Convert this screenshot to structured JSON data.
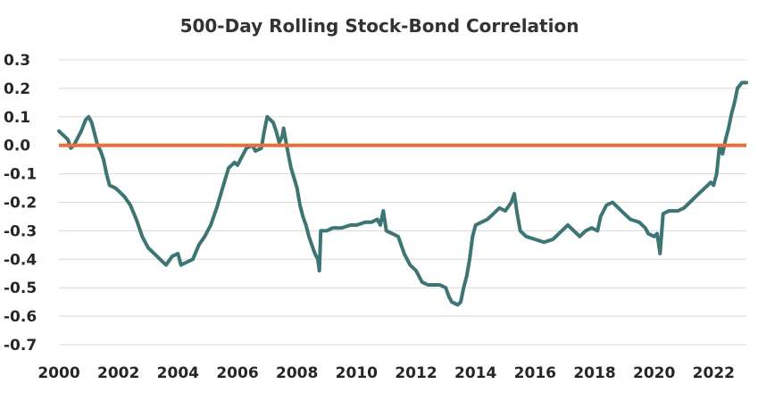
{
  "chart_data": {
    "type": "line",
    "title": "500-Day Rolling Stock-Bond Correlation",
    "xlabel": "",
    "ylabel": "",
    "xlim": [
      2000,
      2023.1
    ],
    "ylim": [
      -0.7,
      0.3
    ],
    "x_ticks": [
      "2000",
      "2002",
      "2004",
      "2006",
      "2008",
      "2010",
      "2012",
      "2014",
      "2016",
      "2018",
      "2020",
      "2022"
    ],
    "y_ticks": [
      "0.3",
      "0.2",
      "0.1",
      "0.0",
      "-0.1",
      "-0.2",
      "-0.3",
      "-0.4",
      "-0.5",
      "-0.6",
      "-0.7"
    ],
    "grid": true,
    "reference_line": {
      "y": 0.0,
      "color": "#E8703A"
    },
    "colors": {
      "series": "#3D7474",
      "reference": "#E8703A",
      "grid": "#d9d9d9"
    },
    "series": [
      {
        "points": [
          [
            2000.0,
            0.05
          ],
          [
            2000.1,
            0.04
          ],
          [
            2000.2,
            0.03
          ],
          [
            2000.3,
            0.02
          ],
          [
            2000.4,
            -0.01
          ],
          [
            2000.5,
            0.0
          ],
          [
            2000.6,
            0.02
          ],
          [
            2000.75,
            0.05
          ],
          [
            2000.9,
            0.09
          ],
          [
            2001.0,
            0.1
          ],
          [
            2001.1,
            0.08
          ],
          [
            2001.2,
            0.04
          ],
          [
            2001.3,
            0.0
          ],
          [
            2001.4,
            -0.02
          ],
          [
            2001.5,
            -0.05
          ],
          [
            2001.6,
            -0.1
          ],
          [
            2001.7,
            -0.14
          ],
          [
            2001.9,
            -0.15
          ],
          [
            2002.0,
            -0.16
          ],
          [
            2002.2,
            -0.18
          ],
          [
            2002.4,
            -0.21
          ],
          [
            2002.6,
            -0.26
          ],
          [
            2002.8,
            -0.32
          ],
          [
            2003.0,
            -0.36
          ],
          [
            2003.2,
            -0.38
          ],
          [
            2003.4,
            -0.4
          ],
          [
            2003.6,
            -0.42
          ],
          [
            2003.8,
            -0.39
          ],
          [
            2004.0,
            -0.38
          ],
          [
            2004.1,
            -0.42
          ],
          [
            2004.3,
            -0.41
          ],
          [
            2004.5,
            -0.4
          ],
          [
            2004.7,
            -0.35
          ],
          [
            2004.9,
            -0.32
          ],
          [
            2005.1,
            -0.28
          ],
          [
            2005.3,
            -0.22
          ],
          [
            2005.5,
            -0.15
          ],
          [
            2005.7,
            -0.08
          ],
          [
            2005.9,
            -0.06
          ],
          [
            2006.0,
            -0.07
          ],
          [
            2006.1,
            -0.05
          ],
          [
            2006.3,
            -0.01
          ],
          [
            2006.5,
            0.0
          ],
          [
            2006.6,
            -0.02
          ],
          [
            2006.8,
            -0.01
          ],
          [
            2006.9,
            0.05
          ],
          [
            2007.0,
            0.1
          ],
          [
            2007.1,
            0.09
          ],
          [
            2007.2,
            0.08
          ],
          [
            2007.3,
            0.05
          ],
          [
            2007.4,
            0.01
          ],
          [
            2007.5,
            0.03
          ],
          [
            2007.55,
            0.06
          ],
          [
            2007.65,
            0.0
          ],
          [
            2007.8,
            -0.08
          ],
          [
            2008.0,
            -0.15
          ],
          [
            2008.1,
            -0.21
          ],
          [
            2008.2,
            -0.25
          ],
          [
            2008.3,
            -0.28
          ],
          [
            2008.4,
            -0.32
          ],
          [
            2008.5,
            -0.35
          ],
          [
            2008.6,
            -0.38
          ],
          [
            2008.7,
            -0.4
          ],
          [
            2008.75,
            -0.44
          ],
          [
            2008.8,
            -0.3
          ],
          [
            2009.0,
            -0.3
          ],
          [
            2009.2,
            -0.29
          ],
          [
            2009.5,
            -0.29
          ],
          [
            2009.8,
            -0.28
          ],
          [
            2010.0,
            -0.28
          ],
          [
            2010.3,
            -0.27
          ],
          [
            2010.5,
            -0.27
          ],
          [
            2010.7,
            -0.26
          ],
          [
            2010.8,
            -0.28
          ],
          [
            2010.9,
            -0.23
          ],
          [
            2011.0,
            -0.3
          ],
          [
            2011.2,
            -0.31
          ],
          [
            2011.4,
            -0.32
          ],
          [
            2011.6,
            -0.38
          ],
          [
            2011.8,
            -0.42
          ],
          [
            2012.0,
            -0.44
          ],
          [
            2012.2,
            -0.48
          ],
          [
            2012.4,
            -0.49
          ],
          [
            2012.6,
            -0.49
          ],
          [
            2012.8,
            -0.49
          ],
          [
            2013.0,
            -0.5
          ],
          [
            2013.1,
            -0.53
          ],
          [
            2013.2,
            -0.55
          ],
          [
            2013.4,
            -0.56
          ],
          [
            2013.5,
            -0.55
          ],
          [
            2013.6,
            -0.5
          ],
          [
            2013.7,
            -0.46
          ],
          [
            2013.8,
            -0.4
          ],
          [
            2013.9,
            -0.32
          ],
          [
            2014.0,
            -0.28
          ],
          [
            2014.2,
            -0.27
          ],
          [
            2014.4,
            -0.26
          ],
          [
            2014.6,
            -0.24
          ],
          [
            2014.8,
            -0.22
          ],
          [
            2015.0,
            -0.23
          ],
          [
            2015.2,
            -0.2
          ],
          [
            2015.3,
            -0.17
          ],
          [
            2015.4,
            -0.24
          ],
          [
            2015.5,
            -0.3
          ],
          [
            2015.7,
            -0.32
          ],
          [
            2016.0,
            -0.33
          ],
          [
            2016.3,
            -0.34
          ],
          [
            2016.6,
            -0.33
          ],
          [
            2016.9,
            -0.3
          ],
          [
            2017.1,
            -0.28
          ],
          [
            2017.3,
            -0.3
          ],
          [
            2017.5,
            -0.32
          ],
          [
            2017.7,
            -0.3
          ],
          [
            2017.9,
            -0.29
          ],
          [
            2018.1,
            -0.3
          ],
          [
            2018.2,
            -0.25
          ],
          [
            2018.4,
            -0.21
          ],
          [
            2018.6,
            -0.2
          ],
          [
            2018.8,
            -0.22
          ],
          [
            2019.0,
            -0.24
          ],
          [
            2019.2,
            -0.26
          ],
          [
            2019.5,
            -0.27
          ],
          [
            2019.7,
            -0.29
          ],
          [
            2019.8,
            -0.31
          ],
          [
            2020.0,
            -0.32
          ],
          [
            2020.1,
            -0.31
          ],
          [
            2020.2,
            -0.38
          ],
          [
            2020.3,
            -0.24
          ],
          [
            2020.5,
            -0.23
          ],
          [
            2020.8,
            -0.23
          ],
          [
            2021.0,
            -0.22
          ],
          [
            2021.2,
            -0.2
          ],
          [
            2021.4,
            -0.18
          ],
          [
            2021.6,
            -0.16
          ],
          [
            2021.8,
            -0.14
          ],
          [
            2021.9,
            -0.13
          ],
          [
            2022.0,
            -0.14
          ],
          [
            2022.1,
            -0.1
          ],
          [
            2022.2,
            0.0
          ],
          [
            2022.3,
            -0.03
          ],
          [
            2022.4,
            0.02
          ],
          [
            2022.5,
            0.06
          ],
          [
            2022.6,
            0.11
          ],
          [
            2022.7,
            0.15
          ],
          [
            2022.8,
            0.2
          ],
          [
            2022.95,
            0.22
          ],
          [
            2023.1,
            0.22
          ]
        ]
      }
    ]
  }
}
